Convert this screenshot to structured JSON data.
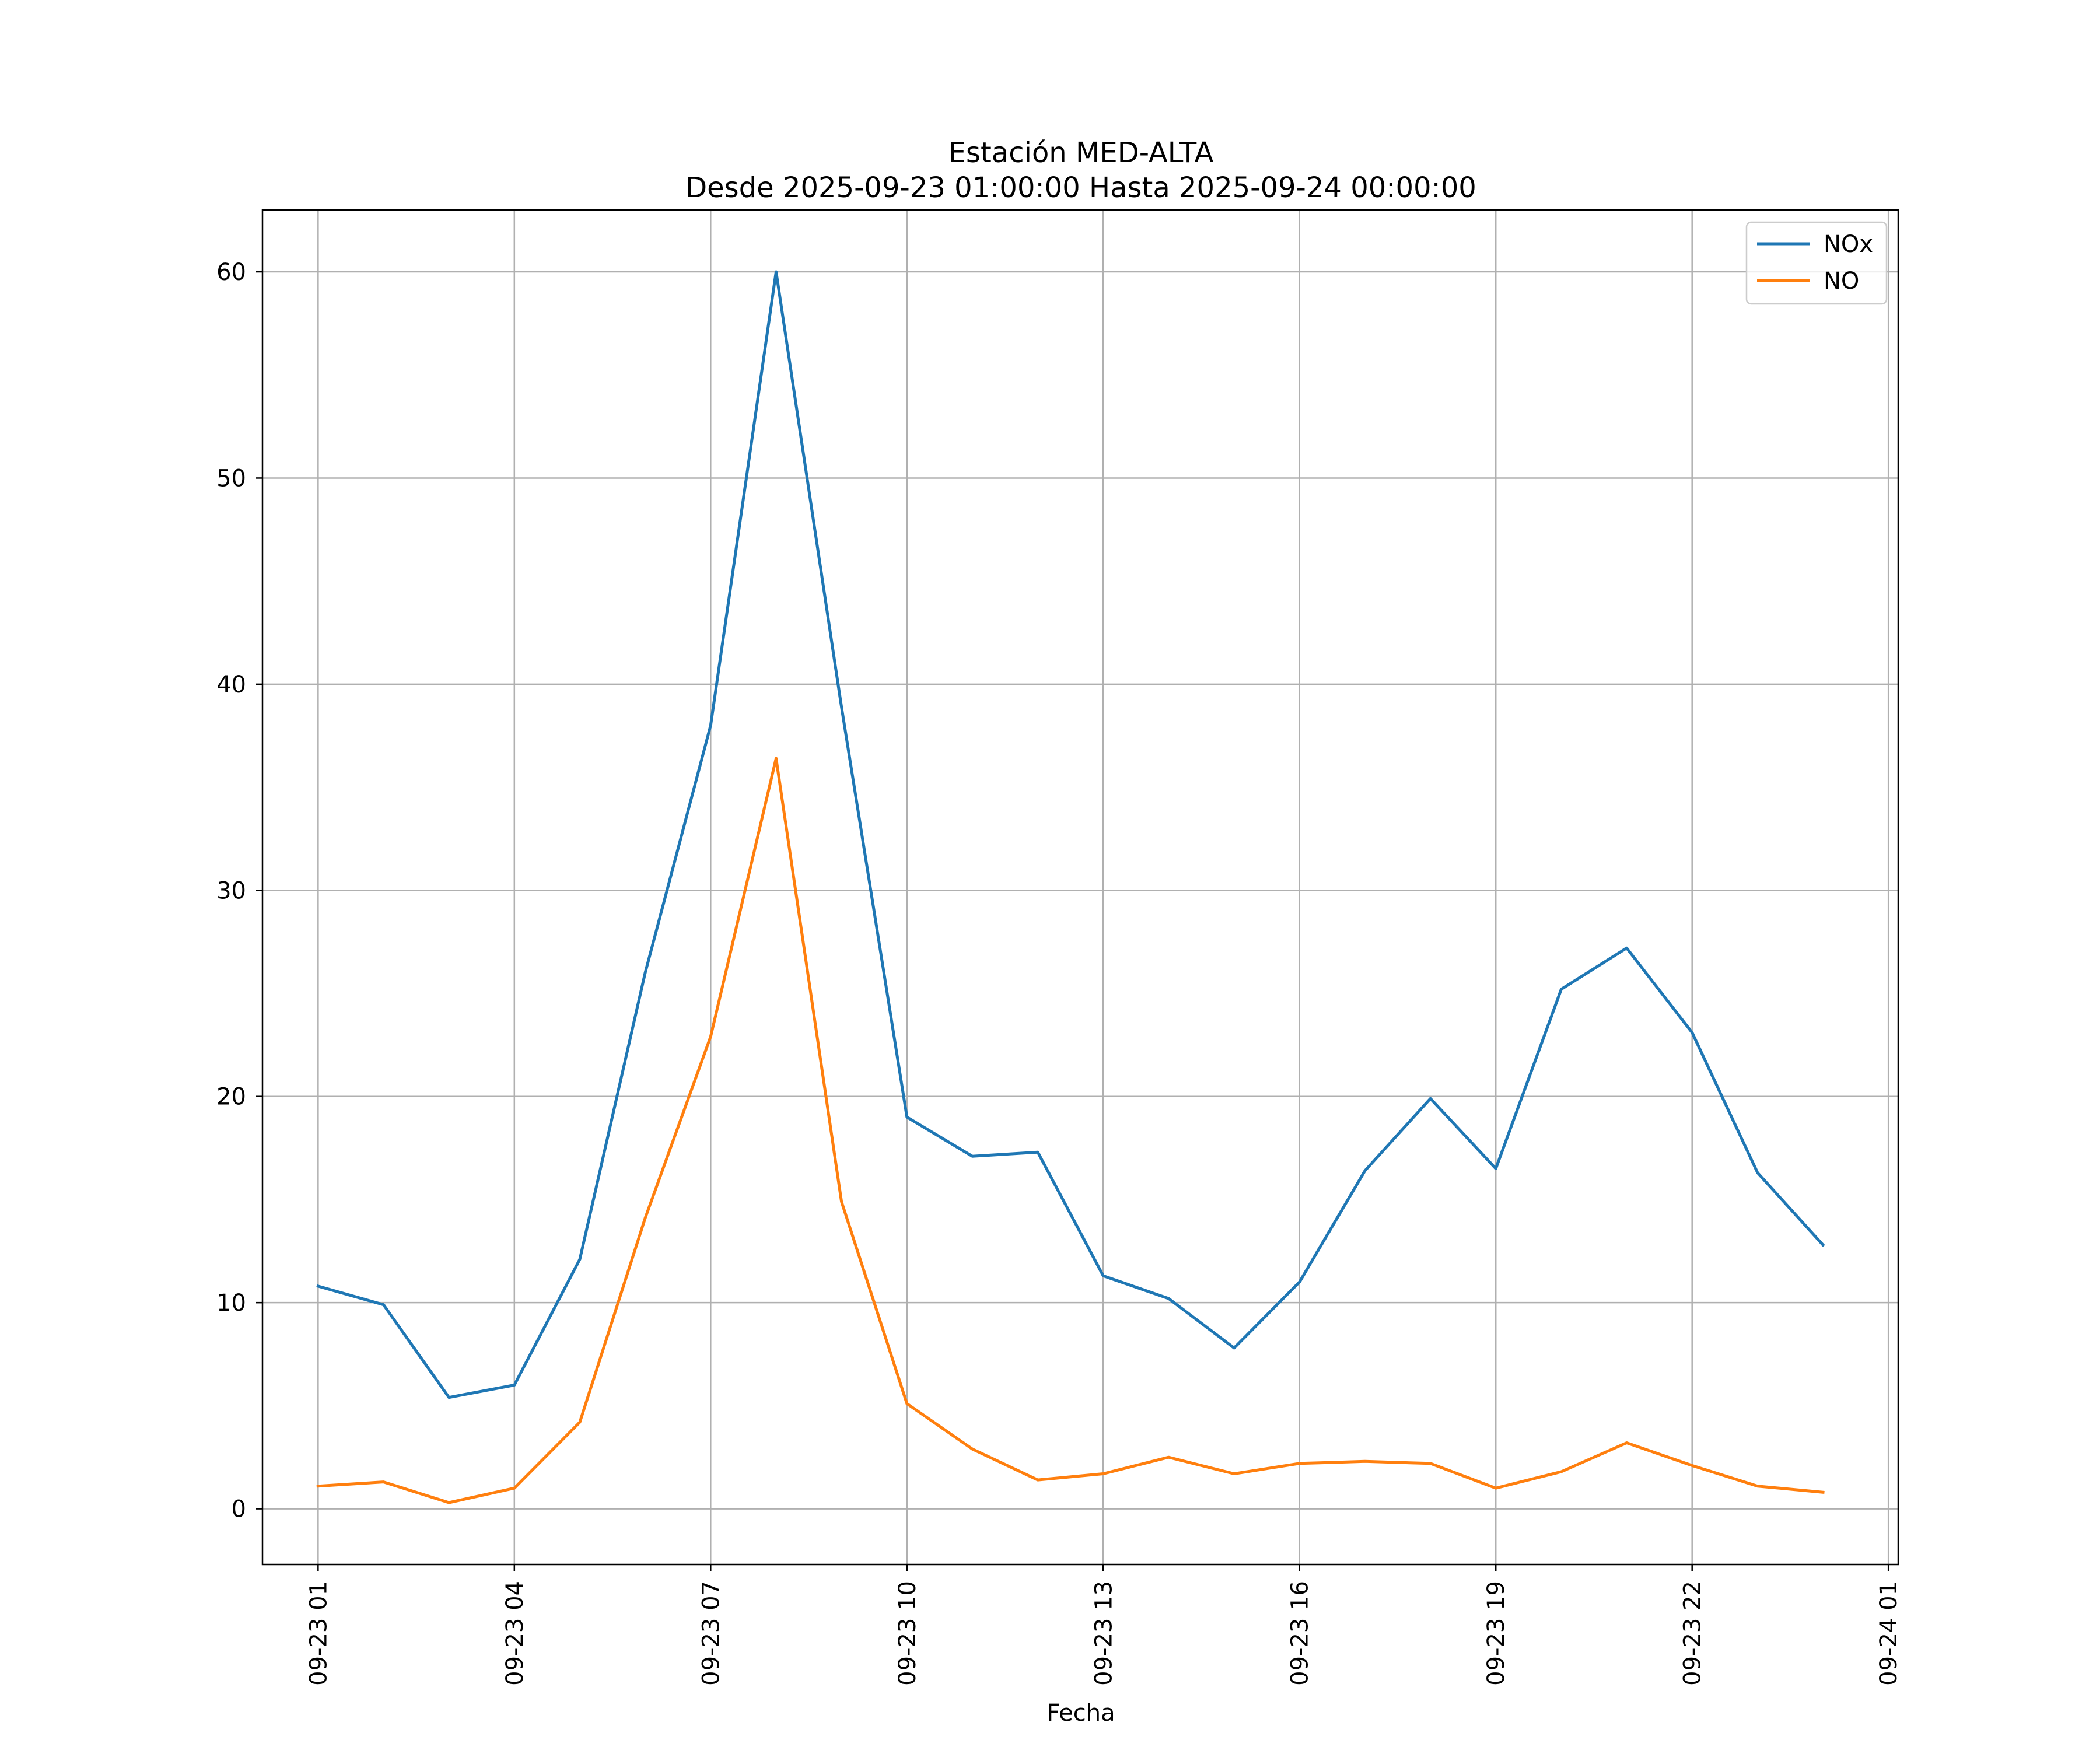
{
  "chart_data": {
    "type": "line",
    "title": "Estación MED-ALTA",
    "subtitle": "Desde 2025-09-23 01:00:00 Hasta 2025-09-24 00:00:00",
    "xlabel": "Fecha",
    "ylabel": "",
    "x": [
      "2025-09-23 01:00",
      "2025-09-23 02:00",
      "2025-09-23 03:00",
      "2025-09-23 04:00",
      "2025-09-23 05:00",
      "2025-09-23 06:00",
      "2025-09-23 07:00",
      "2025-09-23 08:00",
      "2025-09-23 09:00",
      "2025-09-23 10:00",
      "2025-09-23 11:00",
      "2025-09-23 12:00",
      "2025-09-23 13:00",
      "2025-09-23 14:00",
      "2025-09-23 15:00",
      "2025-09-23 16:00",
      "2025-09-23 17:00",
      "2025-09-23 18:00",
      "2025-09-23 19:00",
      "2025-09-23 20:00",
      "2025-09-23 21:00",
      "2025-09-23 22:00",
      "2025-09-23 23:00",
      "2025-09-24 00:00"
    ],
    "series": [
      {
        "name": "NOx",
        "color": "#1f77b4",
        "values": [
          10.8,
          9.9,
          5.4,
          6.0,
          12.1,
          26.0,
          38.0,
          60.0,
          38.9,
          19.0,
          17.1,
          17.3,
          11.3,
          10.2,
          7.8,
          11.0,
          16.4,
          19.9,
          16.5,
          25.2,
          27.2,
          23.1,
          16.3,
          12.8
        ]
      },
      {
        "name": "NO",
        "color": "#ff7f0e",
        "values": [
          1.1,
          1.3,
          0.3,
          1.0,
          4.2,
          14.1,
          22.9,
          36.4,
          14.9,
          5.1,
          2.9,
          1.4,
          1.7,
          2.5,
          1.7,
          2.2,
          2.3,
          2.2,
          1.0,
          1.8,
          3.2,
          2.1,
          1.1,
          0.8
        ]
      }
    ],
    "yticks": [
      0,
      10,
      20,
      30,
      40,
      50,
      60
    ],
    "ylim": [
      -2.7,
      63
    ],
    "xticks": [
      "09-23 01",
      "09-23 04",
      "09-23 07",
      "09-23 10",
      "09-23 13",
      "09-23 16",
      "09-23 19",
      "09-23 22",
      "09-24 01"
    ],
    "xlim": [
      "2025-09-23 00:09",
      "2025-09-24 01:09"
    ],
    "grid": true,
    "legend_position": "top-right"
  }
}
